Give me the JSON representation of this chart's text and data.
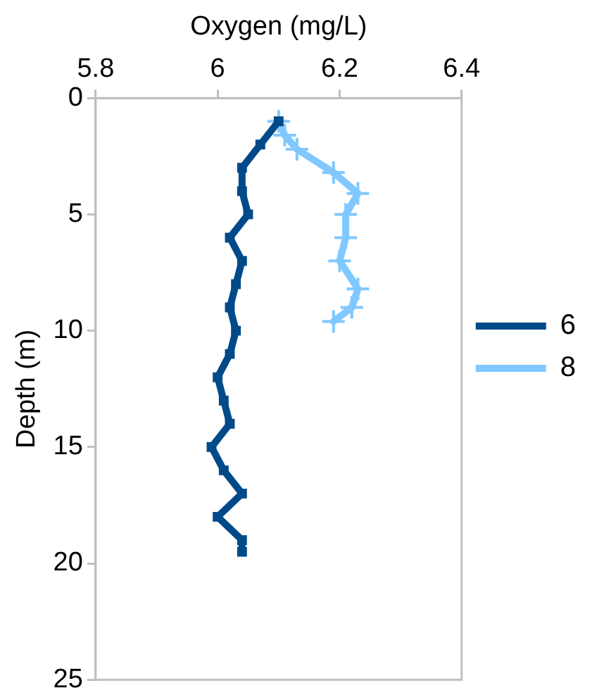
{
  "chart_data": {
    "type": "line",
    "xlabel": "Oxygen (mg/L)",
    "ylabel": "Depth (m)",
    "xlim": [
      5.8,
      6.4
    ],
    "xticks": [
      5.8,
      6,
      6.2,
      6.4
    ],
    "ylim": [
      25,
      0
    ],
    "yticks": [
      0,
      5,
      10,
      15,
      20,
      25
    ],
    "grid": false,
    "legend": "right",
    "line_style": "solid",
    "series": [
      {
        "name": "6",
        "color": "#004a8a",
        "marker": "square",
        "x": [
          6.1,
          6.07,
          6.04,
          6.04,
          6.05,
          6.02,
          6.04,
          6.03,
          6.02,
          6.03,
          6.02,
          6.0,
          6.01,
          6.02,
          5.99,
          6.01,
          6.04,
          6.0,
          6.04,
          6.04
        ],
        "values": [
          1,
          2,
          3,
          4,
          5,
          6,
          7,
          8,
          9,
          10,
          11,
          12,
          13,
          14,
          15,
          16,
          17,
          18,
          19,
          19.5
        ]
      },
      {
        "name": "8",
        "color": "#80c8ff",
        "marker": "cross",
        "x": [
          6.1,
          6.11,
          6.13,
          6.19,
          6.23,
          6.21,
          6.21,
          6.2,
          6.23,
          6.22,
          6.19
        ],
        "values": [
          1,
          1.6,
          2.2,
          3.2,
          4.1,
          5,
          6,
          7,
          8.2,
          9,
          9.6
        ]
      }
    ]
  }
}
